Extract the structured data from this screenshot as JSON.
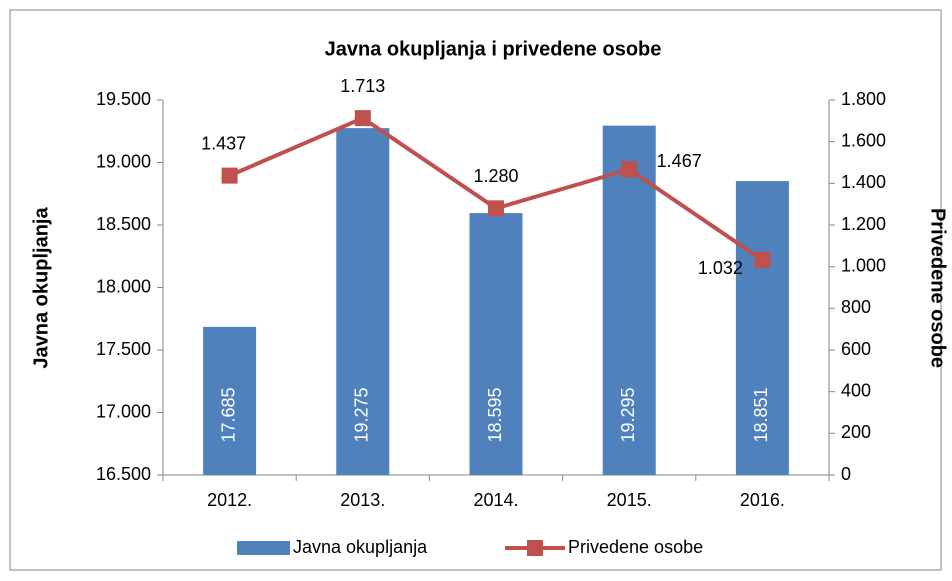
{
  "chart_data": {
    "type": "bar",
    "title": "Javna okupljanja  i privedene osobe",
    "y_label": "Javna okupljanja",
    "y2_label": "Privedene osobe",
    "categories": [
      "2012.",
      "2013.",
      "2014.",
      "2015.",
      "2016."
    ],
    "series": [
      {
        "name": "Javna okupljanja",
        "type": "bar",
        "color": "#4f81bd",
        "values": [
          17685,
          19275,
          18595,
          19295,
          18851
        ],
        "value_labels": [
          "17.685",
          "19.275",
          "18.595",
          "19.295",
          "18.851"
        ]
      },
      {
        "name": "Privedene osobe",
        "type": "line",
        "axis": "y2",
        "color": "#c0504d",
        "values": [
          1437,
          1713,
          1280,
          1467,
          1032
        ],
        "value_labels": [
          "1.437",
          "1.713",
          "1.280",
          "1.467",
          "1.032"
        ]
      }
    ],
    "ylim": [
      16500,
      19500
    ],
    "yticks": [
      {
        "value": 16500,
        "label": "16.500"
      },
      {
        "value": 17000,
        "label": "17.000"
      },
      {
        "value": 17500,
        "label": "17.500"
      },
      {
        "value": 18000,
        "label": "18.000"
      },
      {
        "value": 18500,
        "label": "18.500"
      },
      {
        "value": 19000,
        "label": "19.000"
      },
      {
        "value": 19500,
        "label": "19.500"
      }
    ],
    "y2lim": [
      0,
      1800
    ],
    "y2ticks": [
      0,
      200,
      400,
      600,
      800,
      {
        "value": 1000,
        "label": "1.000"
      },
      {
        "value": 1200,
        "label": "1.200"
      },
      {
        "value": 1400,
        "label": "1.400"
      },
      {
        "value": 1600,
        "label": "1.600"
      },
      {
        "value": 1800,
        "label": "1.800"
      }
    ],
    "legend": "bottom"
  }
}
